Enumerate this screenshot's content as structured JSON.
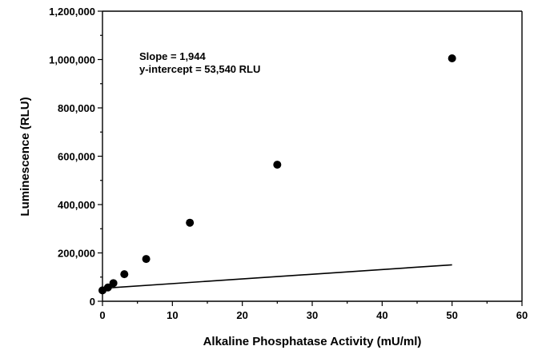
{
  "chart_data": {
    "type": "scatter",
    "xlabel": "Alkaline Phosphatase Activity (mU/ml)",
    "ylabel": "Luminescence (RLU)",
    "xlim": [
      0,
      60
    ],
    "ylim": [
      0,
      1200000
    ],
    "x_ticks": [
      0,
      10,
      20,
      30,
      40,
      50,
      60
    ],
    "y_ticks": [
      0,
      200000,
      400000,
      600000,
      800000,
      1000000,
      1200000
    ],
    "x_tick_labels": [
      "0",
      "10",
      "20",
      "30",
      "40",
      "50",
      "60"
    ],
    "y_tick_labels": [
      "0",
      "200,000",
      "400,000",
      "600,000",
      "800,000",
      "1,000,000",
      "1,200,000"
    ],
    "grid": false,
    "series": [
      {
        "x": [
          0,
          0.78,
          1.56,
          3.125,
          6.25,
          12.5,
          25,
          50
        ],
        "y": [
          45000,
          57000,
          75000,
          112000,
          175000,
          325000,
          565000,
          1005000
        ]
      }
    ],
    "fit": {
      "slope": 1944,
      "intercept": 53540,
      "x_range": [
        0,
        50
      ]
    },
    "annotations": [
      "Slope = 1,944",
      "y-intercept = 53,540 RLU"
    ]
  }
}
